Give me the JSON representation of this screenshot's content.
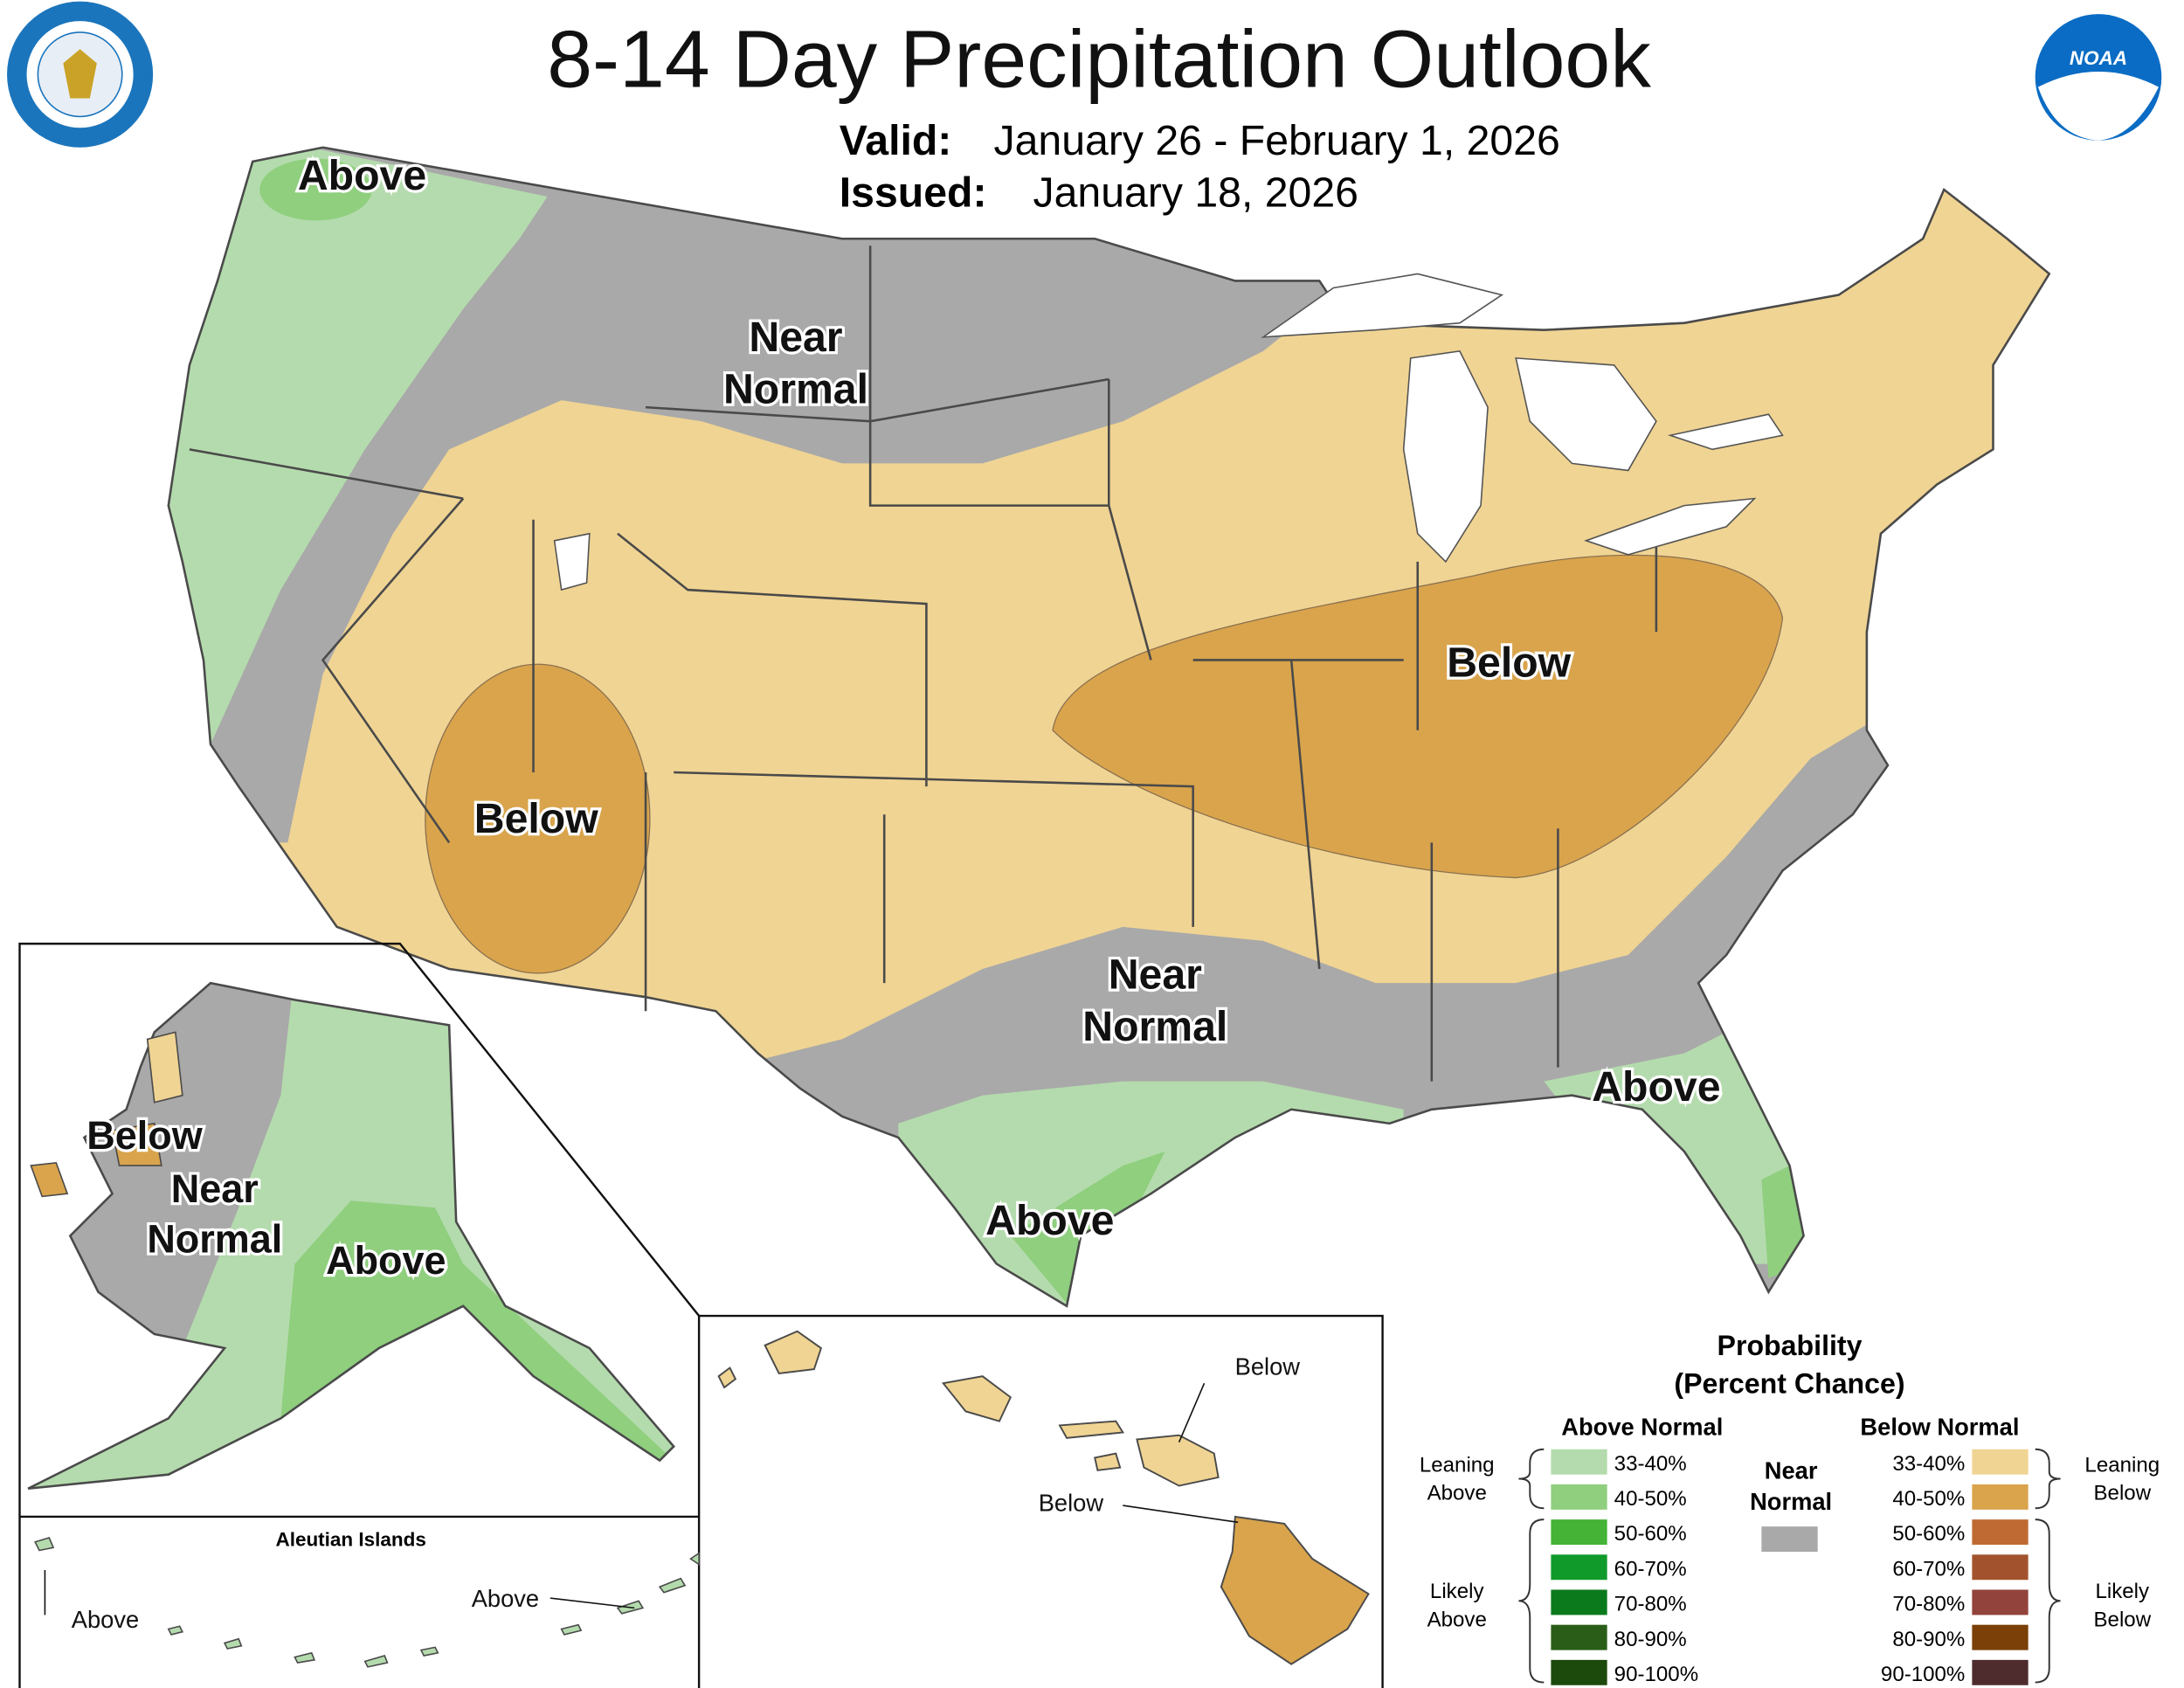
{
  "header": {
    "title": "8-14 Day Precipitation Outlook",
    "valid_label": "Valid:",
    "valid": "January 26 - February 1, 2026",
    "issued_label": "Issued:",
    "issued": "January 18, 2026"
  },
  "logos": {
    "noaa": "NOAA"
  },
  "conus_labels": [
    {
      "lines": [
        "Above"
      ]
    },
    {
      "lines": [
        "Near",
        "Normal"
      ]
    },
    {
      "lines": [
        "Below"
      ]
    },
    {
      "lines": [
        "Below"
      ]
    },
    {
      "lines": [
        "Near",
        "Normal"
      ]
    },
    {
      "lines": [
        "Above"
      ]
    },
    {
      "lines": [
        "Above"
      ]
    }
  ],
  "alaska_labels": [
    {
      "lines": [
        "Below"
      ]
    },
    {
      "lines": [
        "Near",
        "Normal"
      ]
    },
    {
      "lines": [
        "Above"
      ]
    }
  ],
  "aleutian": {
    "title": "Aleutian Islands",
    "labels": [
      "Above",
      "Above"
    ]
  },
  "hawaii_labels": [
    "Below",
    "Below"
  ],
  "legend": {
    "title": [
      "Probability",
      "(Percent Chance)"
    ],
    "above_normal": {
      "heading": "Above Normal",
      "bins": [
        {
          "label": "33-40%",
          "color": "#b4dbad"
        },
        {
          "label": "40-50%",
          "color": "#8fcf7e"
        },
        {
          "label": "50-60%",
          "color": "#44b336"
        },
        {
          "label": "60-70%",
          "color": "#0f9a2a"
        },
        {
          "label": "70-80%",
          "color": "#0a7a1c"
        },
        {
          "label": "80-90%",
          "color": "#2a5e18"
        },
        {
          "label": "90-100%",
          "color": "#1c4a0c"
        }
      ]
    },
    "near_normal": {
      "heading": [
        "Near",
        "Normal"
      ],
      "color": "#a9a9a9"
    },
    "below_normal": {
      "heading": "Below Normal",
      "bins": [
        {
          "label": "33-40%",
          "color": "#f0d493"
        },
        {
          "label": "40-50%",
          "color": "#d9a44c"
        },
        {
          "label": "50-60%",
          "color": "#c06a33"
        },
        {
          "label": "60-70%",
          "color": "#a2532e"
        },
        {
          "label": "70-80%",
          "color": "#92433b"
        },
        {
          "label": "80-90%",
          "color": "#7a4007"
        },
        {
          "label": "90-100%",
          "color": "#4e2c2d"
        }
      ]
    },
    "groups": {
      "leaning_above": [
        "Leaning",
        "Above"
      ],
      "likely_above": [
        "Likely",
        "Above"
      ],
      "leaning_below": [
        "Leaning",
        "Below"
      ],
      "likely_below": [
        "Likely",
        "Below"
      ]
    }
  }
}
